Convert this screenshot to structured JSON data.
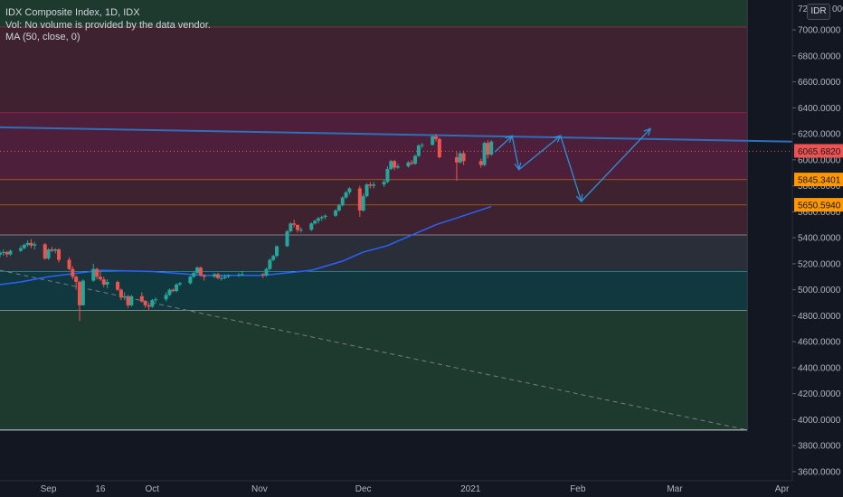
{
  "legend": {
    "title": "IDX Composite Index, 1D, IDX",
    "volume_note": "Vol: No volume is provided by the data vendor.",
    "ma_label": "MA (50, close, 0)"
  },
  "currency": "IDR",
  "colors": {
    "background": "#131722",
    "up": "#26a69a",
    "down": "#ef5350",
    "ma": "#2962ff",
    "trendline": "#2f6fba",
    "arrows": "#2f8fd6",
    "zone_green": "#1e3a2f",
    "zone_red": "#3e2230",
    "zone_magenta": "#4d1f3a",
    "zone_gray": "#2a2e39",
    "zone_teal": "#12383f",
    "level_orange": "#ff9800",
    "level_red": "#f23645",
    "level_pink": "#e91e63",
    "level_white": "#d1d4dc",
    "level_cyan": "#26c6da"
  },
  "chart_data": {
    "type": "candlestick",
    "symbol": "IDX Composite Index",
    "interval": "1D",
    "exchange": "IDX",
    "y_axis": {
      "range": [
        3530,
        7230
      ],
      "ticks": [
        3600,
        3800,
        4000,
        4200,
        4400,
        4600,
        4800,
        5000,
        5200,
        5400,
        5600,
        5800,
        6000,
        6200,
        6400,
        6600,
        6800,
        7000
      ],
      "tick_labels": [
        "3600.0000",
        "3800.0000",
        "4000.0000",
        "4200.0000",
        "4400.0000",
        "4600.0000",
        "4800.0000",
        "5000.0000",
        "5200.0000",
        "5400.0000",
        "5600.0000",
        "5800.0000",
        "6000.0000",
        "6200.0000",
        "6400.0000",
        "6600.0000",
        "6800.0000",
        "7000.0000"
      ],
      "top_partial_label": "72",
      "top_partial_suffix": "000"
    },
    "x_axis": {
      "range": [
        "2020-08-18",
        "2021-04-04"
      ],
      "ticks": [
        {
          "date": "2020-09-01",
          "label": "Sep"
        },
        {
          "date": "2020-09-16",
          "label": "16"
        },
        {
          "date": "2020-10-01",
          "label": "Oct"
        },
        {
          "date": "2020-11-01",
          "label": "Nov"
        },
        {
          "date": "2020-12-01",
          "label": "Dec"
        },
        {
          "date": "2021-01-01",
          "label": "2021"
        },
        {
          "date": "2021-02-01",
          "label": "Feb"
        },
        {
          "date": "2021-03-01",
          "label": "Mar"
        },
        {
          "date": "2021-04-01",
          "label": "Apr"
        }
      ]
    },
    "candles": [
      [
        "2020-08-18",
        5270,
        5300,
        5250,
        5285
      ],
      [
        "2020-08-19",
        5285,
        5310,
        5260,
        5290
      ],
      [
        "2020-08-20",
        5290,
        5300,
        5250,
        5272
      ],
      [
        "2020-08-21",
        5272,
        5310,
        5260,
        5300
      ],
      [
        "2020-08-24",
        5300,
        5340,
        5290,
        5320
      ],
      [
        "2020-08-25",
        5320,
        5355,
        5310,
        5345
      ],
      [
        "2020-08-26",
        5345,
        5380,
        5330,
        5360
      ],
      [
        "2020-08-27",
        5360,
        5390,
        5320,
        5340
      ],
      [
        "2020-08-28",
        5340,
        5370,
        5310,
        5350
      ],
      [
        "2020-08-31",
        5350,
        5360,
        5230,
        5240
      ],
      [
        "2020-09-01",
        5240,
        5320,
        5230,
        5310
      ],
      [
        "2020-09-02",
        5310,
        5330,
        5290,
        5300
      ],
      [
        "2020-09-03",
        5300,
        5320,
        5280,
        5310
      ],
      [
        "2020-09-04",
        5310,
        5320,
        5210,
        5230
      ],
      [
        "2020-09-07",
        5230,
        5250,
        5150,
        5160
      ],
      [
        "2020-09-08",
        5160,
        5180,
        5080,
        5100
      ],
      [
        "2020-09-09",
        5100,
        5110,
        5000,
        5060
      ],
      [
        "2020-09-10",
        5060,
        5070,
        4760,
        4880
      ],
      [
        "2020-09-11",
        4880,
        5080,
        4880,
        5070
      ],
      [
        "2020-09-14",
        5070,
        5200,
        5060,
        5160
      ],
      [
        "2020-09-15",
        5160,
        5170,
        5080,
        5100
      ],
      [
        "2020-09-16",
        5100,
        5140,
        5070,
        5080
      ],
      [
        "2020-09-17",
        5080,
        5100,
        5020,
        5040
      ],
      [
        "2020-09-18",
        5040,
        5080,
        5010,
        5060
      ],
      [
        "2020-09-21",
        5060,
        5070,
        4990,
        5000
      ],
      [
        "2020-09-22",
        5000,
        5010,
        4920,
        4940
      ],
      [
        "2020-09-23",
        4940,
        4980,
        4920,
        4950
      ],
      [
        "2020-09-24",
        4950,
        4960,
        4860,
        4880
      ],
      [
        "2020-09-25",
        4880,
        4960,
        4870,
        4950
      ],
      [
        "2020-09-28",
        4950,
        4980,
        4900,
        4910
      ],
      [
        "2020-09-29",
        4910,
        4920,
        4860,
        4880
      ],
      [
        "2020-09-30",
        4880,
        4900,
        4840,
        4870
      ],
      [
        "2020-10-01",
        4870,
        4930,
        4860,
        4920
      ],
      [
        "2020-10-02",
        4920,
        4940,
        4900,
        4926
      ],
      [
        "2020-10-05",
        4926,
        4980,
        4910,
        4960
      ],
      [
        "2020-10-06",
        4960,
        5010,
        4950,
        5000
      ],
      [
        "2020-10-07",
        5000,
        5010,
        4980,
        4990
      ],
      [
        "2020-10-08",
        4990,
        5050,
        4980,
        5040
      ],
      [
        "2020-10-09",
        5040,
        5060,
        5030,
        5050
      ],
      [
        "2020-10-12",
        5050,
        5110,
        5040,
        5100
      ],
      [
        "2020-10-13",
        5100,
        5140,
        5090,
        5130
      ],
      [
        "2020-10-14",
        5130,
        5180,
        5120,
        5170
      ],
      [
        "2020-10-15",
        5170,
        5180,
        5100,
        5110
      ],
      [
        "2020-10-16",
        5110,
        5120,
        5070,
        5100
      ],
      [
        "2020-10-19",
        5100,
        5130,
        5090,
        5120
      ],
      [
        "2020-10-20",
        5120,
        5130,
        5080,
        5090
      ],
      [
        "2020-10-21",
        5090,
        5110,
        5070,
        5090
      ],
      [
        "2020-10-22",
        5090,
        5120,
        5080,
        5100
      ],
      [
        "2020-10-23",
        5100,
        5120,
        5090,
        5110
      ],
      [
        "2020-10-26",
        5110,
        5130,
        5100,
        5115
      ],
      [
        "2020-10-27",
        5115,
        5140,
        5105,
        5120
      ],
      [
        "2020-11-02",
        5120,
        5130,
        5090,
        5110
      ],
      [
        "2020-11-03",
        5110,
        5170,
        5100,
        5160
      ],
      [
        "2020-11-04",
        5160,
        5240,
        5150,
        5230
      ],
      [
        "2020-11-05",
        5230,
        5270,
        5220,
        5260
      ],
      [
        "2020-11-06",
        5260,
        5340,
        5250,
        5335
      ],
      [
        "2020-11-09",
        5335,
        5460,
        5330,
        5450
      ],
      [
        "2020-11-10",
        5450,
        5520,
        5440,
        5510
      ],
      [
        "2020-11-11",
        5510,
        5540,
        5480,
        5500
      ],
      [
        "2020-11-12",
        5500,
        5490,
        5440,
        5460
      ],
      [
        "2020-11-13",
        5460,
        5480,
        5440,
        5462
      ],
      [
        "2020-11-16",
        5462,
        5520,
        5450,
        5510
      ],
      [
        "2020-11-17",
        5510,
        5540,
        5500,
        5530
      ],
      [
        "2020-11-18",
        5530,
        5560,
        5510,
        5550
      ],
      [
        "2020-11-19",
        5550,
        5570,
        5530,
        5560
      ],
      [
        "2020-11-20",
        5560,
        5580,
        5540,
        5570
      ],
      [
        "2020-11-23",
        5570,
        5620,
        5560,
        5610
      ],
      [
        "2020-11-24",
        5610,
        5660,
        5600,
        5650
      ],
      [
        "2020-11-25",
        5650,
        5720,
        5640,
        5710
      ],
      [
        "2020-11-26",
        5710,
        5760,
        5700,
        5750
      ],
      [
        "2020-11-27",
        5750,
        5790,
        5730,
        5780
      ],
      [
        "2020-11-30",
        5780,
        5800,
        5560,
        5610
      ],
      [
        "2020-12-01",
        5610,
        5740,
        5600,
        5720
      ],
      [
        "2020-12-02",
        5720,
        5820,
        5710,
        5810
      ],
      [
        "2020-12-03",
        5810,
        5830,
        5780,
        5800
      ],
      [
        "2020-12-04",
        5800,
        5830,
        5780,
        5810
      ],
      [
        "2020-12-07",
        5810,
        5850,
        5790,
        5830
      ],
      [
        "2020-12-08",
        5830,
        5950,
        5820,
        5930
      ],
      [
        "2020-12-09",
        5930,
        6000,
        5920,
        5990
      ],
      [
        "2020-12-10",
        5990,
        6000,
        5920,
        5940
      ],
      [
        "2020-12-11",
        5940,
        5970,
        5930,
        5950
      ],
      [
        "2020-12-14",
        5950,
        5990,
        5940,
        5980
      ],
      [
        "2020-12-15",
        5980,
        6000,
        5960,
        5970
      ],
      [
        "2020-12-16",
        5970,
        6040,
        5960,
        6030
      ],
      [
        "2020-12-17",
        6030,
        6120,
        6020,
        6110
      ],
      [
        "2020-12-18",
        6110,
        6130,
        6090,
        6115
      ],
      [
        "2020-12-21",
        6115,
        6190,
        6110,
        6180
      ],
      [
        "2020-12-22",
        6180,
        6200,
        6140,
        6160
      ],
      [
        "2020-12-23",
        6160,
        6170,
        6010,
        6020
      ],
      [
        "2020-12-28",
        6020,
        6060,
        5840,
        5980
      ],
      [
        "2020-12-29",
        5980,
        6060,
        5970,
        6050
      ],
      [
        "2020-12-30",
        6050,
        6070,
        5960,
        5990
      ],
      [
        "2021-01-04",
        5990,
        6010,
        5940,
        5960
      ],
      [
        "2021-01-05",
        5960,
        6140,
        5950,
        6130
      ],
      [
        "2021-01-06",
        6130,
        6150,
        6010,
        6040
      ],
      [
        "2021-01-07",
        6040,
        6150,
        6030,
        6140
      ]
    ],
    "ma_points": [
      [
        "2020-08-18",
        5040
      ],
      [
        "2020-08-24",
        5060
      ],
      [
        "2020-09-01",
        5100
      ],
      [
        "2020-09-16",
        5150
      ],
      [
        "2020-10-01",
        5140
      ],
      [
        "2020-10-16",
        5110
      ],
      [
        "2020-11-02",
        5110
      ],
      [
        "2020-11-16",
        5150
      ],
      [
        "2020-11-25",
        5220
      ],
      [
        "2020-12-01",
        5290
      ],
      [
        "2020-12-08",
        5340
      ],
      [
        "2020-12-15",
        5420
      ],
      [
        "2020-12-22",
        5500
      ],
      [
        "2020-12-30",
        5570
      ],
      [
        "2021-01-07",
        5640
      ]
    ],
    "zones": [
      {
        "from": 7230,
        "to": 7020,
        "color": "zone_green",
        "edge": "level_red"
      },
      {
        "from": 7020,
        "to": 6360,
        "color": "zone_red",
        "edge": "level_pink"
      },
      {
        "from": 6360,
        "to": 5845.3401,
        "color": "zone_magenta",
        "edge": "level_orange"
      },
      {
        "from": 5845.3401,
        "to": 5650.594,
        "color": "zone_red",
        "edge": "level_orange"
      },
      {
        "from": 5650.594,
        "to": 5420,
        "color": "zone_red",
        "edge": "level_white"
      },
      {
        "from": 5420,
        "to": 5140,
        "color": "zone_gray",
        "edge": "level_cyan"
      },
      {
        "from": 5140,
        "to": 4840,
        "color": "zone_teal",
        "edge": "level_white"
      },
      {
        "from": 4840,
        "to": 3920,
        "color": "zone_green",
        "edge": "level_white"
      }
    ],
    "zone_end_date": "2021-03-22",
    "trendline": {
      "from": [
        "2020-08-18",
        6250
      ],
      "to": [
        "2021-04-04",
        6140
      ]
    },
    "dashed_trendline": {
      "from": [
        "2020-08-18",
        5150
      ],
      "to": [
        "2021-03-22",
        3920
      ]
    },
    "projection_path": [
      [
        "2021-01-08",
        6060
      ],
      [
        "2021-01-14",
        6180
      ],
      [
        "2021-01-11",
        6160
      ],
      [
        "2021-01-14",
        6180
      ],
      [
        "2021-01-11",
        6180
      ],
      [
        "2021-01-13",
        6180
      ],
      [
        "2021-01-15",
        5920
      ],
      [
        "2021-01-26",
        6190
      ],
      [
        "2021-01-29",
        5680
      ],
      [
        "2021-02-23",
        6240
      ]
    ],
    "projection_segments": [
      [
        [
          "2021-01-08",
          6060
        ],
        [
          "2021-01-13",
          6185
        ]
      ],
      [
        [
          "2021-01-13",
          6185
        ],
        [
          "2021-01-15",
          5925
        ]
      ],
      [
        [
          "2021-01-15",
          5925
        ],
        [
          "2021-01-27",
          6185
        ]
      ],
      [
        [
          "2021-01-27",
          6185
        ],
        [
          "2021-02-02",
          5680
        ]
      ],
      [
        [
          "2021-02-02",
          5680
        ],
        [
          "2021-02-22",
          6240
        ]
      ]
    ],
    "price_labels": [
      {
        "value": 6065.682,
        "label": "6065.6820",
        "color": "#ef5350"
      },
      {
        "value": 5845.3401,
        "label": "5845.3401",
        "color": "#ff9800"
      },
      {
        "value": 5650.594,
        "label": "5650.5940",
        "color": "#ff9800"
      }
    ],
    "current_price": 6065.682
  }
}
